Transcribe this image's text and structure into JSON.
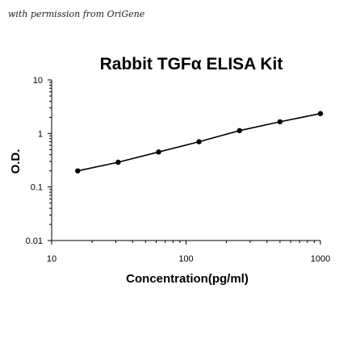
{
  "credit": "with permission from OriGene",
  "chart_data": {
    "type": "line",
    "title": "Rabbit TGFα ELISA Kit",
    "xlabel": "Concentration(pg/ml)",
    "ylabel": "O.D.",
    "x_scale": "log",
    "y_scale": "log",
    "xlim": [
      10,
      1000
    ],
    "ylim": [
      0.01,
      10
    ],
    "x_ticks": [
      10,
      100,
      1000
    ],
    "x_tick_labels": [
      "10",
      "100",
      "1000"
    ],
    "y_ticks": [
      10,
      1,
      0.1,
      0.01
    ],
    "y_tick_labels": [
      "10",
      "1",
      "0.1",
      "0.01"
    ],
    "grid": false,
    "legend": false,
    "series": [
      {
        "x": [
          15.625,
          31.25,
          62.5,
          125,
          250,
          500,
          1000
        ],
        "y": [
          0.2,
          0.29,
          0.45,
          0.7,
          1.13,
          1.65,
          2.35
        ],
        "color": "#000000",
        "marker": "circle"
      }
    ]
  }
}
